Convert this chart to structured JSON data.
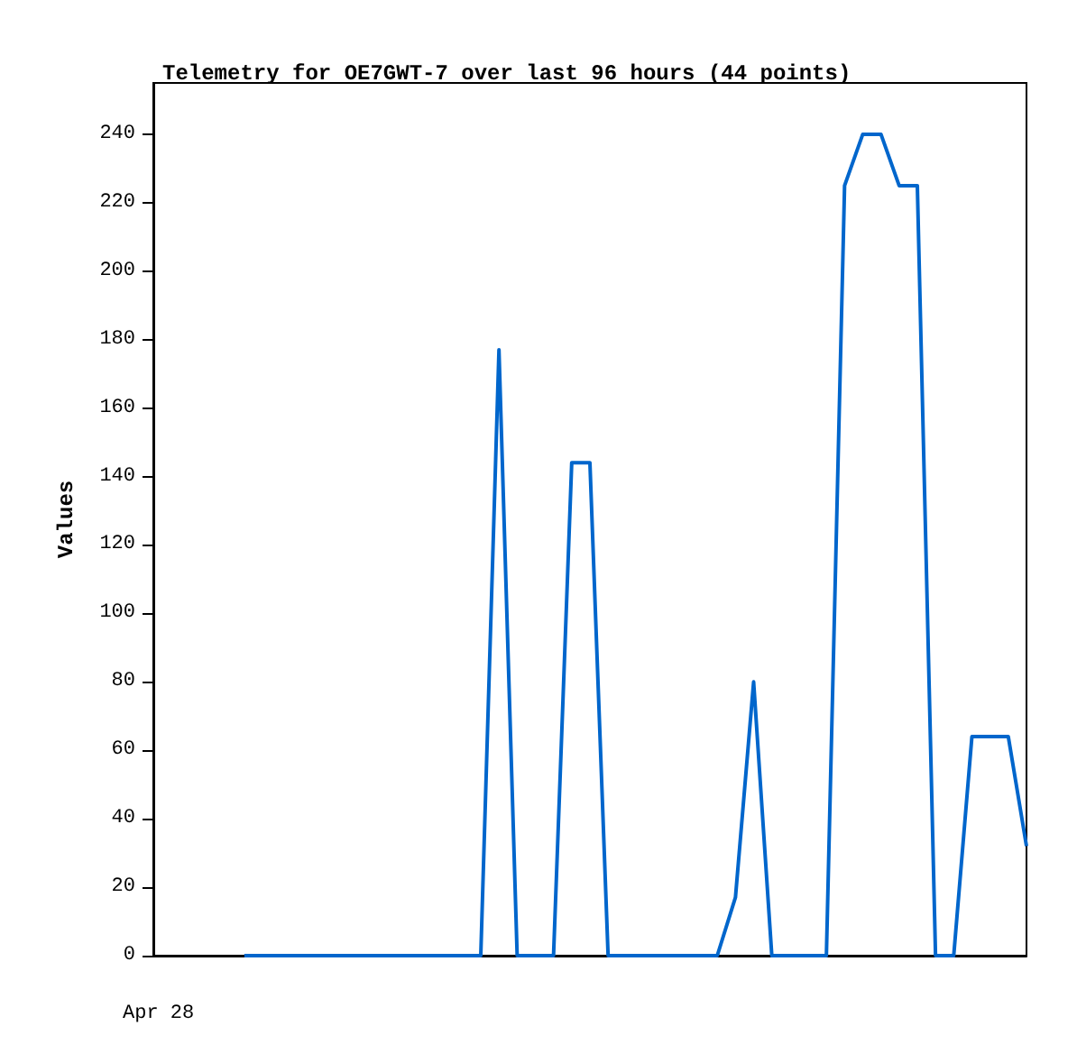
{
  "chart_data": {
    "type": "line",
    "title": "Telemetry for OE7GWT-7 over last 96 hours (44 points)",
    "ylabel": "Values",
    "annotations": [
      "Apr 28"
    ],
    "categories": [
      null,
      null,
      null,
      null,
      null,
      null,
      null,
      null,
      null,
      null,
      null,
      null,
      null,
      null,
      null,
      null,
      null,
      null,
      null,
      null,
      null,
      null,
      null,
      null,
      null,
      null,
      null,
      null,
      null,
      null,
      null,
      null,
      null,
      null,
      null,
      null,
      null,
      null,
      null,
      null,
      null,
      null,
      null,
      null,
      null,
      null,
      null,
      null,
      null
    ],
    "series": [
      {
        "color": "#0066cc",
        "values": [
          null,
          null,
          null,
          null,
          null,
          0,
          0,
          0,
          0,
          0,
          0,
          0,
          0,
          0,
          0,
          0,
          0,
          0,
          0,
          177,
          0,
          0,
          0,
          144,
          144,
          0,
          0,
          0,
          0,
          0,
          0,
          0,
          17,
          80,
          0,
          0,
          0,
          0,
          225,
          240,
          240,
          225,
          225,
          0,
          0,
          64,
          64,
          64,
          32
        ]
      }
    ],
    "ylim": [
      0,
      255
    ],
    "yticks": [
      0,
      20,
      40,
      60,
      80,
      100,
      120,
      140,
      160,
      180,
      200,
      220,
      240
    ],
    "grid": false,
    "marker": "none",
    "line_style": "solid"
  }
}
